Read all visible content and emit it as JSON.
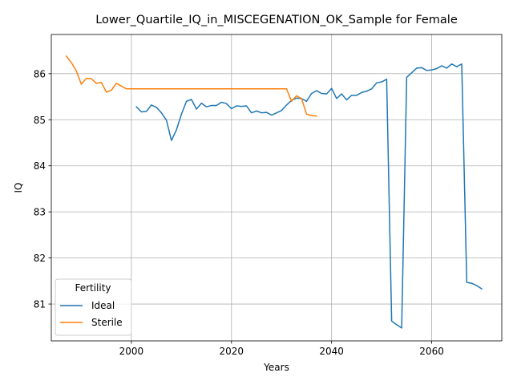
{
  "chart_data": {
    "type": "line",
    "title": "Lower_Quartile_IQ_in_MISCEGENATION_OK_Sample for Female",
    "xlabel": "Years",
    "ylabel": "IQ",
    "xlim": [
      1984,
      2074
    ],
    "ylim": [
      80.2,
      86.85
    ],
    "xticks": [
      2000,
      2020,
      2040,
      2060
    ],
    "yticks": [
      81,
      82,
      83,
      84,
      85,
      86
    ],
    "grid": true,
    "legend": {
      "title": "Fertility",
      "position": "lower-left",
      "entries": [
        "Ideal",
        "Sterile"
      ]
    },
    "series": [
      {
        "name": "Ideal",
        "color": "#1f77b4",
        "x": [
          2001,
          2002,
          2003,
          2004,
          2005,
          2006,
          2007,
          2008,
          2009,
          2010,
          2011,
          2012,
          2013,
          2014,
          2015,
          2016,
          2017,
          2018,
          2019,
          2020,
          2021,
          2022,
          2023,
          2024,
          2025,
          2026,
          2027,
          2028,
          2029,
          2030,
          2031,
          2032,
          2033,
          2034,
          2035,
          2036,
          2037,
          2038,
          2039,
          2040,
          2041,
          2042,
          2043,
          2044,
          2045,
          2046,
          2047,
          2048,
          2049,
          2050,
          2051,
          2052,
          2053,
          2054,
          2055,
          2056,
          2057,
          2058,
          2059,
          2060,
          2061,
          2062,
          2063,
          2064,
          2065,
          2066,
          2067,
          2068,
          2069,
          2070
        ],
        "y": [
          85.28,
          85.17,
          85.18,
          85.32,
          85.27,
          85.15,
          84.99,
          84.55,
          84.78,
          85.12,
          85.4,
          85.44,
          85.23,
          85.36,
          85.28,
          85.31,
          85.31,
          85.38,
          85.35,
          85.24,
          85.3,
          85.29,
          85.3,
          85.15,
          85.19,
          85.15,
          85.16,
          85.1,
          85.15,
          85.2,
          85.32,
          85.42,
          85.47,
          85.46,
          85.4,
          85.57,
          85.63,
          85.57,
          85.56,
          85.68,
          85.46,
          85.56,
          85.43,
          85.53,
          85.53,
          85.59,
          85.62,
          85.67,
          85.8,
          85.82,
          85.88,
          80.63,
          80.55,
          80.48,
          85.92,
          86.02,
          86.12,
          86.13,
          86.07,
          86.08,
          86.11,
          86.17,
          86.12,
          86.21,
          86.15,
          86.21,
          81.47,
          81.45,
          81.4,
          81.33
        ]
      },
      {
        "name": "Sterile",
        "color": "#ff7f0e",
        "x": [
          1987,
          1988,
          1989,
          1990,
          1991,
          1992,
          1993,
          1994,
          1995,
          1996,
          1997,
          1998,
          1999,
          2000,
          2001,
          2002,
          2003,
          2004,
          2005,
          2006,
          2007,
          2008,
          2009,
          2010,
          2011,
          2012,
          2013,
          2014,
          2015,
          2016,
          2017,
          2018,
          2019,
          2020,
          2021,
          2022,
          2023,
          2024,
          2025,
          2026,
          2027,
          2028,
          2029,
          2030,
          2031,
          2032,
          2033,
          2034,
          2035,
          2036,
          2037
        ],
        "y": [
          86.38,
          86.24,
          86.06,
          85.77,
          85.9,
          85.89,
          85.79,
          85.81,
          85.6,
          85.64,
          85.79,
          85.73,
          85.67,
          85.67,
          85.67,
          85.67,
          85.67,
          85.67,
          85.67,
          85.67,
          85.67,
          85.67,
          85.67,
          85.67,
          85.67,
          85.67,
          85.67,
          85.67,
          85.67,
          85.67,
          85.67,
          85.67,
          85.67,
          85.67,
          85.67,
          85.67,
          85.67,
          85.67,
          85.67,
          85.67,
          85.67,
          85.67,
          85.67,
          85.67,
          85.67,
          85.4,
          85.52,
          85.46,
          85.12,
          85.09,
          85.08
        ]
      }
    ]
  }
}
